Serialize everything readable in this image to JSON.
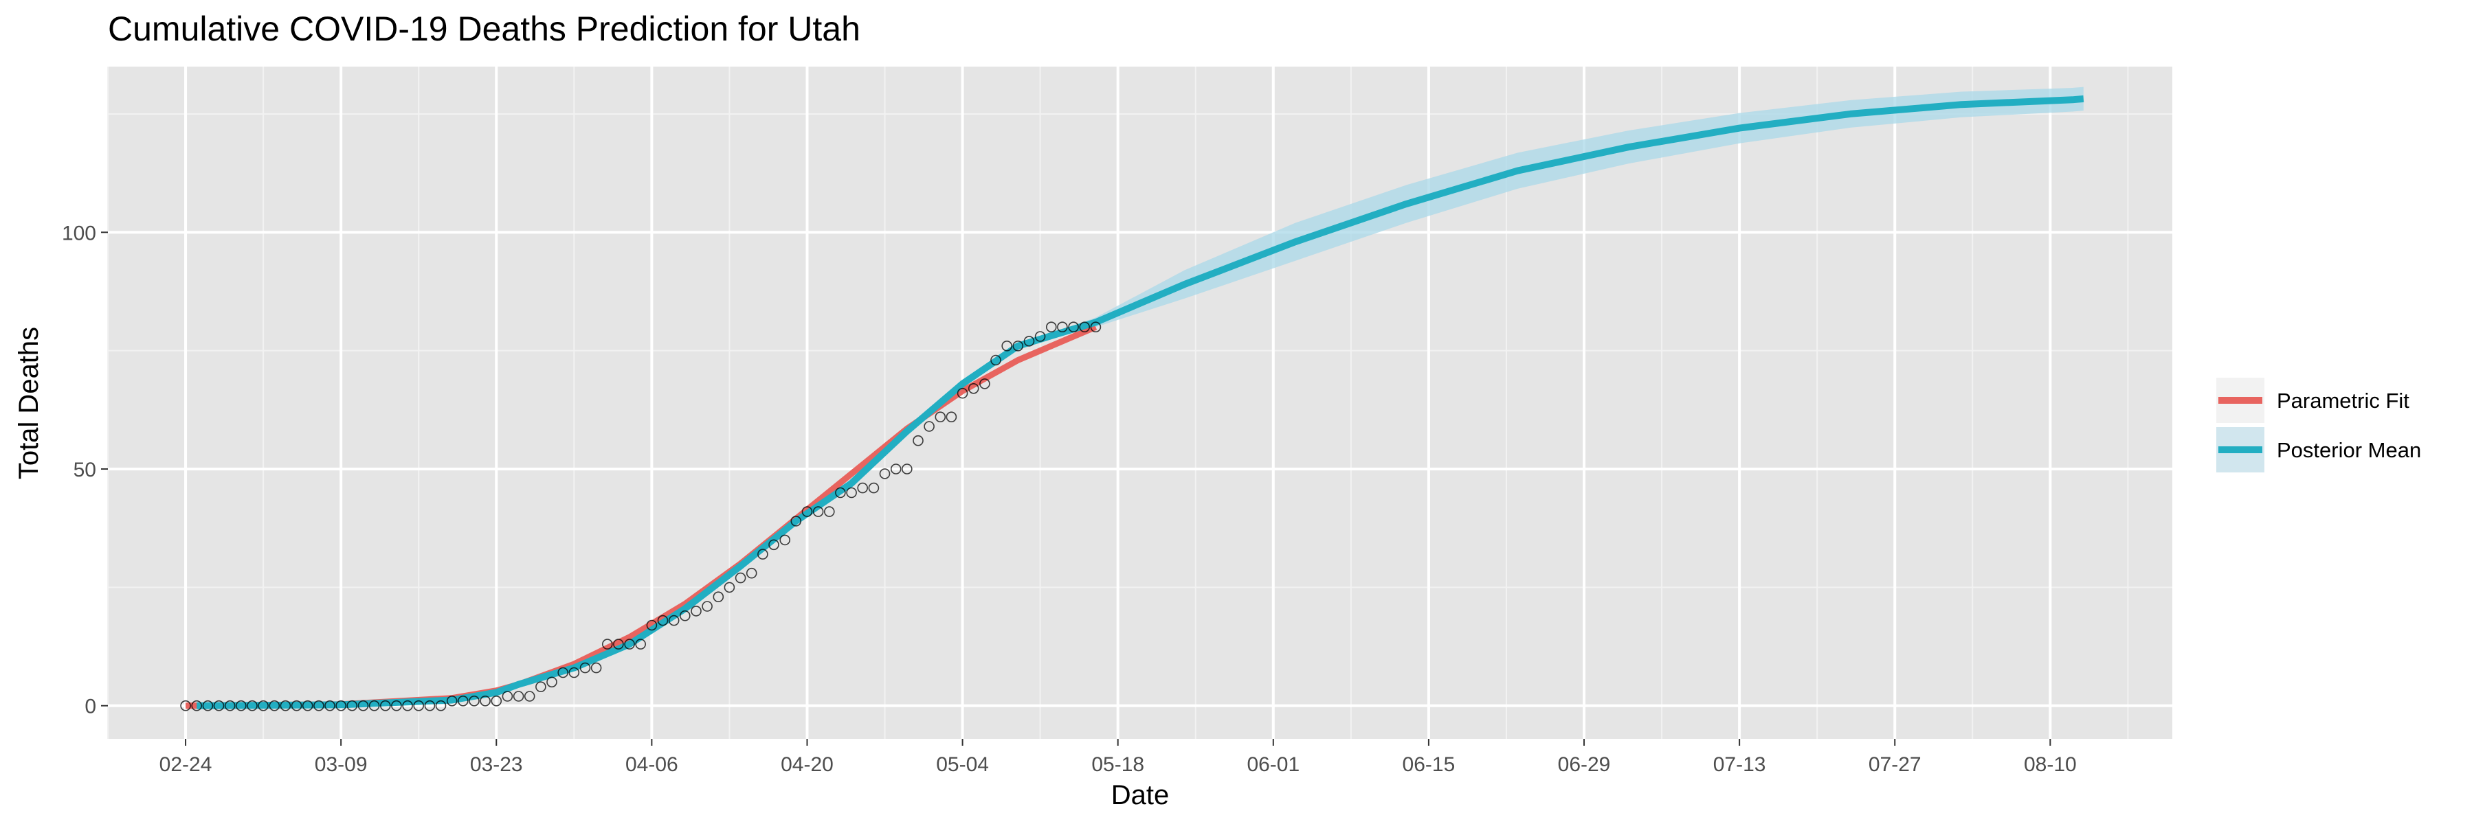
{
  "chart_data": {
    "type": "line",
    "title": "Cumulative COVID-19 Deaths Prediction for Utah",
    "xlabel": "Date",
    "ylabel": "Total Deaths",
    "x_tick_labels": [
      "02-24",
      "03-09",
      "03-23",
      "04-06",
      "04-20",
      "05-04",
      "05-18",
      "06-01",
      "06-15",
      "06-29",
      "07-13",
      "07-27",
      "08-10"
    ],
    "y_ticks": [
      0,
      50,
      100
    ],
    "ylim": [
      -7,
      135
    ],
    "xlim_days": [
      -7,
      179
    ],
    "grid": true,
    "legend_position": "right",
    "series": [
      {
        "name": "Parametric Fit",
        "color": "#e8645f",
        "x_days": [
          0,
          14,
          24,
          28,
          30,
          35,
          40,
          45,
          50,
          55,
          60,
          65,
          70,
          75,
          80,
          82
        ],
        "values": [
          0,
          0.3,
          1.6,
          3.2,
          4.5,
          8.8,
          14.5,
          21.5,
          30,
          39.5,
          49,
          58.5,
          66.5,
          73,
          78,
          80
        ]
      },
      {
        "name": "Posterior Mean",
        "color": "#22aec2",
        "band_color": "#a9d8e8",
        "x_days": [
          1,
          14,
          24,
          28,
          30,
          35,
          40,
          45,
          50,
          55,
          60,
          65,
          70,
          75,
          82,
          90,
          100,
          110,
          120,
          130,
          140,
          150,
          160,
          170,
          171
        ],
        "values": [
          0,
          0.2,
          1.2,
          2.8,
          4.5,
          8,
          13,
          20.5,
          29.5,
          39,
          47,
          58,
          68,
          76,
          81,
          89,
          98,
          106,
          113,
          118,
          122,
          125,
          127,
          128,
          128.2
        ],
        "band_halfwidth": [
          0,
          0,
          0,
          0,
          0,
          0,
          0,
          0,
          0,
          0,
          0,
          0,
          0,
          0,
          1,
          3,
          4,
          4,
          3.8,
          3.5,
          3.2,
          2.9,
          2.7,
          2.5,
          2.5
        ]
      }
    ],
    "observed": {
      "x_days": [
        0,
        1,
        2,
        3,
        4,
        5,
        6,
        7,
        8,
        9,
        10,
        11,
        12,
        13,
        14,
        15,
        16,
        17,
        18,
        19,
        20,
        21,
        22,
        23,
        24,
        25,
        26,
        27,
        28,
        29,
        30,
        31,
        32,
        33,
        34,
        35,
        36,
        37,
        38,
        39,
        40,
        41,
        42,
        43,
        44,
        45,
        46,
        47,
        48,
        49,
        50,
        51,
        52,
        53,
        54,
        55,
        56,
        57,
        58,
        59,
        60,
        61,
        62,
        63,
        64,
        65,
        66,
        67,
        68,
        69,
        70,
        71,
        72,
        73,
        74,
        75,
        76,
        77,
        78,
        79,
        80,
        81,
        82
      ],
      "values": [
        0,
        0,
        0,
        0,
        0,
        0,
        0,
        0,
        0,
        0,
        0,
        0,
        0,
        0,
        0,
        0,
        0,
        0,
        0,
        0,
        0,
        0,
        0,
        0,
        1,
        1,
        1,
        1,
        1,
        2,
        2,
        2,
        4,
        5,
        7,
        7,
        8,
        8,
        13,
        13,
        13,
        13,
        17,
        18,
        18,
        19,
        20,
        21,
        23,
        25,
        27,
        28,
        32,
        34,
        35,
        39,
        41,
        41,
        41,
        45,
        45,
        46,
        46,
        49,
        50,
        50,
        56,
        59,
        61,
        61,
        66,
        67,
        68,
        73,
        76,
        76,
        77,
        78,
        80,
        80,
        80,
        80,
        80
      ]
    }
  }
}
